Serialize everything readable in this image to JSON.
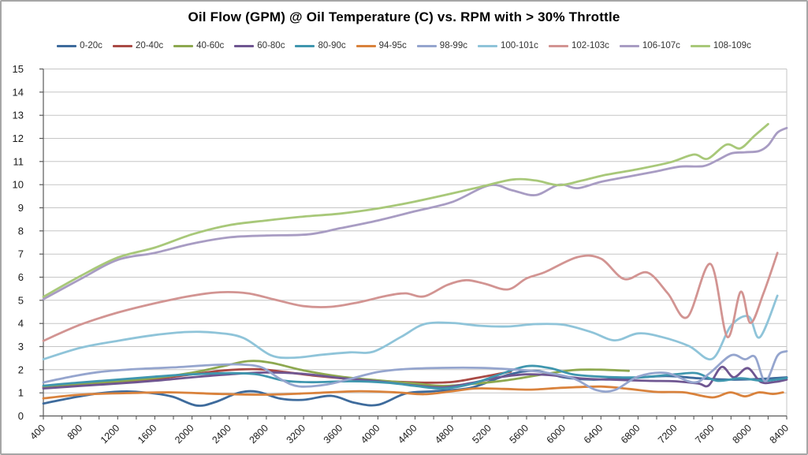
{
  "chart_data": {
    "type": "line",
    "title": "Oil Flow (GPM) @ Oil Temperature (C) vs. RPM with > 30% Throttle",
    "xlabel": "",
    "ylabel": "",
    "xlim": [
      400,
      8400
    ],
    "ylim": [
      0,
      15
    ],
    "grid": "horizontal",
    "legend_position": "top",
    "x_tick_labels": [
      "400",
      "800",
      "1200",
      "1600",
      "2000",
      "2400",
      "2800",
      "3200",
      "3600",
      "4000",
      "4400",
      "4800",
      "5200",
      "5600",
      "6000",
      "6400",
      "6800",
      "7200",
      "7600",
      "8000",
      "8400"
    ],
    "x_minor_tick_step": 200,
    "y_tick_labels": [
      "0",
      "1",
      "2",
      "3",
      "4",
      "5",
      "6",
      "7",
      "8",
      "9",
      "10",
      "11",
      "12",
      "13",
      "14",
      "15"
    ],
    "colors": {
      "gridline": "#c6c6c6",
      "axis_line": "#595959",
      "tick_text": "#1a1a1a",
      "plot_border": "#c6c6c6"
    },
    "series": [
      {
        "name": "0-20c",
        "color": "#3e6b9c",
        "points": [
          [
            400,
            0.54
          ],
          [
            700,
            0.78
          ],
          [
            1000,
            0.98
          ],
          [
            1300,
            1.06
          ],
          [
            1600,
            0.97
          ],
          [
            1800,
            0.82
          ],
          [
            2050,
            0.45
          ],
          [
            2250,
            0.6
          ],
          [
            2500,
            1.0
          ],
          [
            2700,
            1.05
          ],
          [
            2950,
            0.75
          ],
          [
            3200,
            0.7
          ],
          [
            3500,
            0.87
          ],
          [
            3750,
            0.57
          ],
          [
            4000,
            0.48
          ],
          [
            4300,
            0.97
          ],
          [
            4600,
            1.07
          ],
          [
            5000,
            1.22
          ],
          [
            5400,
            1.78
          ],
          [
            5700,
            1.95
          ],
          [
            6000,
            1.67
          ],
          [
            6300,
            1.57
          ],
          [
            6700,
            1.63
          ],
          [
            7100,
            1.73
          ],
          [
            7450,
            1.63
          ],
          [
            7800,
            1.57
          ],
          [
            8100,
            1.6
          ],
          [
            8400,
            1.67
          ]
        ]
      },
      {
        "name": "20-40c",
        "color": "#a94a45",
        "points": [
          [
            400,
            1.24
          ],
          [
            800,
            1.35
          ],
          [
            1200,
            1.47
          ],
          [
            1600,
            1.6
          ],
          [
            2000,
            1.8
          ],
          [
            2350,
            1.97
          ],
          [
            2700,
            2.02
          ],
          [
            3000,
            1.9
          ],
          [
            3300,
            1.75
          ],
          [
            3700,
            1.6
          ],
          [
            4100,
            1.5
          ],
          [
            4500,
            1.44
          ],
          [
            4800,
            1.47
          ],
          [
            5100,
            1.67
          ],
          [
            5430,
            1.92
          ]
        ]
      },
      {
        "name": "40-60c",
        "color": "#8da84f",
        "points": [
          [
            400,
            1.28
          ],
          [
            800,
            1.4
          ],
          [
            1200,
            1.5
          ],
          [
            1600,
            1.64
          ],
          [
            2000,
            1.87
          ],
          [
            2300,
            2.12
          ],
          [
            2600,
            2.37
          ],
          [
            2850,
            2.3
          ],
          [
            3200,
            1.97
          ],
          [
            3600,
            1.7
          ],
          [
            4000,
            1.54
          ],
          [
            4400,
            1.4
          ],
          [
            4700,
            1.3
          ],
          [
            5000,
            1.38
          ],
          [
            5400,
            1.55
          ],
          [
            5750,
            1.78
          ],
          [
            6100,
            1.98
          ],
          [
            6400,
            2.0
          ],
          [
            6700,
            1.95
          ]
        ]
      },
      {
        "name": "60-80c",
        "color": "#6f5691",
        "points": [
          [
            400,
            1.19
          ],
          [
            800,
            1.3
          ],
          [
            1200,
            1.4
          ],
          [
            1600,
            1.52
          ],
          [
            2000,
            1.67
          ],
          [
            2400,
            1.8
          ],
          [
            2800,
            1.88
          ],
          [
            3200,
            1.82
          ],
          [
            3600,
            1.64
          ],
          [
            4000,
            1.5
          ],
          [
            4400,
            1.32
          ],
          [
            4700,
            1.24
          ],
          [
            5000,
            1.42
          ],
          [
            5300,
            1.67
          ],
          [
            5600,
            1.8
          ],
          [
            5900,
            1.75
          ],
          [
            6200,
            1.62
          ],
          [
            6500,
            1.57
          ],
          [
            6900,
            1.52
          ],
          [
            7200,
            1.5
          ],
          [
            7450,
            1.4
          ],
          [
            7560,
            1.32
          ],
          [
            7700,
            2.12
          ],
          [
            7830,
            1.67
          ],
          [
            7980,
            2.07
          ],
          [
            8120,
            1.47
          ],
          [
            8270,
            1.47
          ],
          [
            8400,
            1.57
          ]
        ]
      },
      {
        "name": "80-90c",
        "color": "#3f96ae",
        "points": [
          [
            400,
            1.31
          ],
          [
            800,
            1.45
          ],
          [
            1200,
            1.57
          ],
          [
            1600,
            1.7
          ],
          [
            2000,
            1.8
          ],
          [
            2400,
            1.85
          ],
          [
            2700,
            1.8
          ],
          [
            3000,
            1.52
          ],
          [
            3300,
            1.46
          ],
          [
            3700,
            1.5
          ],
          [
            4100,
            1.44
          ],
          [
            4400,
            1.3
          ],
          [
            4700,
            1.19
          ],
          [
            5000,
            1.38
          ],
          [
            5300,
            1.78
          ],
          [
            5600,
            2.15
          ],
          [
            5850,
            2.07
          ],
          [
            6100,
            1.8
          ],
          [
            6400,
            1.7
          ],
          [
            6800,
            1.67
          ],
          [
            7200,
            1.8
          ],
          [
            7430,
            1.85
          ],
          [
            7650,
            1.52
          ],
          [
            7900,
            1.63
          ],
          [
            8150,
            1.52
          ],
          [
            8400,
            1.64
          ]
        ]
      },
      {
        "name": "94-95c",
        "color": "#d9823c",
        "points": [
          [
            400,
            0.76
          ],
          [
            800,
            0.92
          ],
          [
            1300,
            0.99
          ],
          [
            1800,
            1.02
          ],
          [
            2300,
            0.95
          ],
          [
            2800,
            0.92
          ],
          [
            3300,
            0.99
          ],
          [
            3800,
            1.07
          ],
          [
            4200,
            1.02
          ],
          [
            4500,
            0.94
          ],
          [
            4800,
            1.07
          ],
          [
            5050,
            1.19
          ],
          [
            5350,
            1.17
          ],
          [
            5650,
            1.14
          ],
          [
            6000,
            1.22
          ],
          [
            6400,
            1.27
          ],
          [
            6700,
            1.17
          ],
          [
            7000,
            1.04
          ],
          [
            7300,
            1.02
          ],
          [
            7600,
            0.8
          ],
          [
            7790,
            1.02
          ],
          [
            7950,
            0.85
          ],
          [
            8100,
            1.02
          ],
          [
            8250,
            0.95
          ],
          [
            8360,
            1.02
          ]
        ]
      },
      {
        "name": "98-99c",
        "color": "#95a5ce",
        "points": [
          [
            400,
            1.45
          ],
          [
            700,
            1.7
          ],
          [
            1000,
            1.9
          ],
          [
            1400,
            2.03
          ],
          [
            1800,
            2.1
          ],
          [
            2200,
            2.2
          ],
          [
            2500,
            2.23
          ],
          [
            2750,
            2.1
          ],
          [
            2950,
            1.6
          ],
          [
            3150,
            1.28
          ],
          [
            3450,
            1.36
          ],
          [
            3700,
            1.6
          ],
          [
            4000,
            1.9
          ],
          [
            4300,
            2.03
          ],
          [
            4700,
            2.08
          ],
          [
            5100,
            2.08
          ],
          [
            5500,
            2.0
          ],
          [
            5800,
            1.88
          ],
          [
            6100,
            1.63
          ],
          [
            6350,
            1.12
          ],
          [
            6550,
            1.12
          ],
          [
            6800,
            1.7
          ],
          [
            7100,
            1.86
          ],
          [
            7400,
            1.45
          ],
          [
            7570,
            1.85
          ],
          [
            7800,
            2.62
          ],
          [
            7950,
            2.45
          ],
          [
            8060,
            2.55
          ],
          [
            8170,
            1.5
          ],
          [
            8300,
            2.6
          ],
          [
            8400,
            2.8
          ]
        ]
      },
      {
        "name": "100-101c",
        "color": "#8fc4d9",
        "points": [
          [
            400,
            2.45
          ],
          [
            800,
            2.95
          ],
          [
            1200,
            3.25
          ],
          [
            1600,
            3.5
          ],
          [
            1950,
            3.63
          ],
          [
            2250,
            3.6
          ],
          [
            2550,
            3.38
          ],
          [
            2850,
            2.62
          ],
          [
            3100,
            2.52
          ],
          [
            3400,
            2.65
          ],
          [
            3700,
            2.75
          ],
          [
            3950,
            2.78
          ],
          [
            4250,
            3.42
          ],
          [
            4500,
            3.97
          ],
          [
            4800,
            4.02
          ],
          [
            5100,
            3.9
          ],
          [
            5400,
            3.87
          ],
          [
            5700,
            3.97
          ],
          [
            6000,
            3.94
          ],
          [
            6300,
            3.62
          ],
          [
            6550,
            3.27
          ],
          [
            6800,
            3.57
          ],
          [
            7050,
            3.42
          ],
          [
            7350,
            3.02
          ],
          [
            7600,
            2.47
          ],
          [
            7800,
            3.9
          ],
          [
            7990,
            4.3
          ],
          [
            8110,
            3.4
          ],
          [
            8300,
            5.2
          ]
        ]
      },
      {
        "name": "102-103c",
        "color": "#d29492",
        "points": [
          [
            400,
            3.25
          ],
          [
            800,
            3.95
          ],
          [
            1200,
            4.47
          ],
          [
            1600,
            4.87
          ],
          [
            2000,
            5.2
          ],
          [
            2300,
            5.35
          ],
          [
            2600,
            5.3
          ],
          [
            2900,
            5.02
          ],
          [
            3200,
            4.75
          ],
          [
            3500,
            4.72
          ],
          [
            3800,
            4.92
          ],
          [
            4100,
            5.2
          ],
          [
            4300,
            5.3
          ],
          [
            4500,
            5.17
          ],
          [
            4750,
            5.67
          ],
          [
            4950,
            5.87
          ],
          [
            5150,
            5.72
          ],
          [
            5400,
            5.47
          ],
          [
            5600,
            5.95
          ],
          [
            5800,
            6.22
          ],
          [
            6150,
            6.87
          ],
          [
            6400,
            6.8
          ],
          [
            6650,
            5.92
          ],
          [
            6900,
            6.2
          ],
          [
            7120,
            5.3
          ],
          [
            7330,
            4.27
          ],
          [
            7580,
            6.57
          ],
          [
            7760,
            3.42
          ],
          [
            7905,
            5.37
          ],
          [
            8010,
            4.02
          ],
          [
            8150,
            5.3
          ],
          [
            8300,
            7.05
          ]
        ]
      },
      {
        "name": "106-107c",
        "color": "#a89cc3",
        "points": [
          [
            400,
            5.05
          ],
          [
            800,
            5.92
          ],
          [
            1200,
            6.75
          ],
          [
            1600,
            7.05
          ],
          [
            2000,
            7.45
          ],
          [
            2400,
            7.72
          ],
          [
            2800,
            7.8
          ],
          [
            3250,
            7.85
          ],
          [
            3600,
            8.12
          ],
          [
            4000,
            8.45
          ],
          [
            4400,
            8.85
          ],
          [
            4800,
            9.25
          ],
          [
            5200,
            9.97
          ],
          [
            5450,
            9.75
          ],
          [
            5700,
            9.55
          ],
          [
            5950,
            10.0
          ],
          [
            6150,
            9.85
          ],
          [
            6400,
            10.12
          ],
          [
            6700,
            10.35
          ],
          [
            7000,
            10.58
          ],
          [
            7250,
            10.78
          ],
          [
            7500,
            10.8
          ],
          [
            7650,
            11.05
          ],
          [
            7800,
            11.35
          ],
          [
            7950,
            11.4
          ],
          [
            8100,
            11.45
          ],
          [
            8200,
            11.7
          ],
          [
            8300,
            12.25
          ],
          [
            8400,
            12.45
          ]
        ]
      },
      {
        "name": "108-109c",
        "color": "#a8c879",
        "points": [
          [
            400,
            5.15
          ],
          [
            800,
            6.05
          ],
          [
            1200,
            6.85
          ],
          [
            1600,
            7.28
          ],
          [
            2000,
            7.85
          ],
          [
            2400,
            8.25
          ],
          [
            2800,
            8.45
          ],
          [
            3200,
            8.62
          ],
          [
            3600,
            8.75
          ],
          [
            4000,
            8.97
          ],
          [
            4400,
            9.27
          ],
          [
            4800,
            9.62
          ],
          [
            5100,
            9.9
          ],
          [
            5450,
            10.22
          ],
          [
            5700,
            10.18
          ],
          [
            5950,
            9.98
          ],
          [
            6200,
            10.18
          ],
          [
            6450,
            10.42
          ],
          [
            6800,
            10.67
          ],
          [
            7150,
            10.97
          ],
          [
            7400,
            11.3
          ],
          [
            7550,
            11.12
          ],
          [
            7750,
            11.73
          ],
          [
            7900,
            11.57
          ],
          [
            8050,
            12.1
          ],
          [
            8200,
            12.62
          ]
        ]
      }
    ]
  }
}
